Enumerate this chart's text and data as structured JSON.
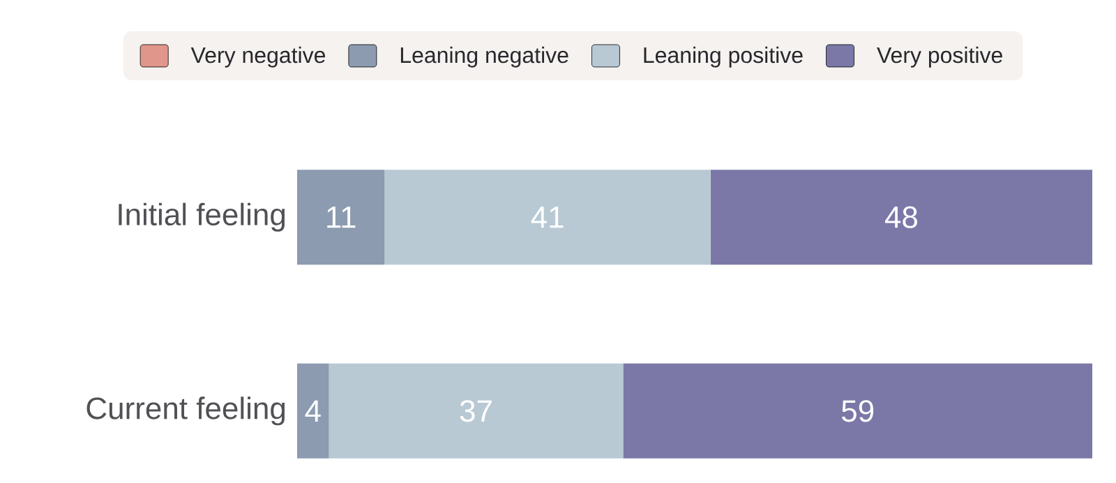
{
  "chart_data": {
    "type": "bar",
    "orientation": "horizontal",
    "stacked": true,
    "legend": "top",
    "categories": [
      "Initial feeling",
      "Current feeling"
    ],
    "series": [
      {
        "name": "Very negative",
        "color": "#e0968a",
        "values": [
          null,
          null
        ]
      },
      {
        "name": "Leaning negative",
        "color": "#8c9bb0",
        "values": [
          11,
          4
        ],
        "value_labels": [
          "11",
          "4"
        ]
      },
      {
        "name": "Leaning positive",
        "color": "#b8c9d4",
        "values": [
          41,
          37
        ],
        "value_labels": [
          "41",
          "37"
        ]
      },
      {
        "name": "Very positive",
        "color": "#7b78a8",
        "values": [
          48,
          59
        ],
        "value_labels": [
          "48",
          "59"
        ]
      }
    ]
  }
}
